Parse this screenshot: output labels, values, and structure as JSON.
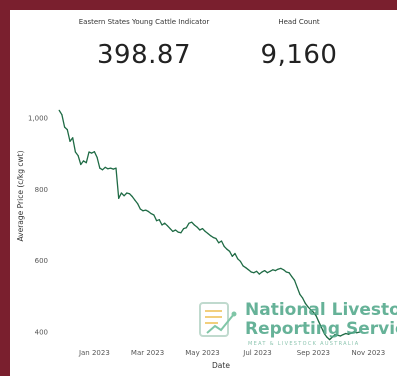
{
  "kpis": [
    {
      "label": "Eastern States Young Cattle Indicator",
      "value": "398.87"
    },
    {
      "label": "Head Count",
      "value": "9,160"
    }
  ],
  "watermark": {
    "line1": "National Livestock",
    "line2": "Reporting Service",
    "tagline": "MEAT & LIVESTOCK AUSTRALIA"
  },
  "colors": {
    "line": "#1f6b45",
    "frame": "#7a1f2e",
    "watermark": "#52a88a"
  },
  "chart_data": {
    "type": "line",
    "xlabel": "Date",
    "ylabel": "Average Price (c/kg cwt)",
    "x_tick_labels": [
      "Jan 2023",
      "Mar 2023",
      "May 2023",
      "Jul 2023",
      "Sep 2023",
      "Nov 2023"
    ],
    "x_ticks": [
      "2023-01-01",
      "2023-03-01",
      "2023-05-01",
      "2023-07-01",
      "2023-09-01",
      "2023-11-01"
    ],
    "y_ticks": [
      400,
      600,
      800,
      1000
    ],
    "y_tick_labels": [
      "400",
      "600",
      "800",
      "1,000"
    ],
    "xlim": [
      "2022-11-15",
      "2023-11-25"
    ],
    "ylim": [
      360,
      1040
    ],
    "grid": false,
    "series": [
      {
        "values": [
          [
            "2022-11-23",
            1022
          ],
          [
            "2022-11-26",
            1010
          ],
          [
            "2022-11-29",
            975
          ],
          [
            "2022-12-02",
            968
          ],
          [
            "2022-12-05",
            935
          ],
          [
            "2022-12-08",
            945
          ],
          [
            "2022-12-11",
            905
          ],
          [
            "2022-12-14",
            895
          ],
          [
            "2022-12-17",
            870
          ],
          [
            "2022-12-20",
            880
          ],
          [
            "2022-12-23",
            875
          ],
          [
            "2022-12-26",
            905
          ],
          [
            "2022-12-29",
            902
          ],
          [
            "2023-01-01",
            906
          ],
          [
            "2023-01-04",
            890
          ],
          [
            "2023-01-07",
            860
          ],
          [
            "2023-01-10",
            855
          ],
          [
            "2023-01-13",
            862
          ],
          [
            "2023-01-16",
            858
          ],
          [
            "2023-01-19",
            860
          ],
          [
            "2023-01-22",
            857
          ],
          [
            "2023-01-25",
            860
          ],
          [
            "2023-01-28",
            775
          ],
          [
            "2023-01-31",
            790
          ],
          [
            "2023-02-03",
            782
          ],
          [
            "2023-02-06",
            790
          ],
          [
            "2023-02-09",
            788
          ],
          [
            "2023-02-12",
            780
          ],
          [
            "2023-02-15",
            770
          ],
          [
            "2023-02-18",
            760
          ],
          [
            "2023-02-21",
            745
          ],
          [
            "2023-02-24",
            740
          ],
          [
            "2023-02-27",
            742
          ],
          [
            "2023-03-02",
            738
          ],
          [
            "2023-03-05",
            732
          ],
          [
            "2023-03-08",
            728
          ],
          [
            "2023-03-11",
            712
          ],
          [
            "2023-03-14",
            715
          ],
          [
            "2023-03-17",
            700
          ],
          [
            "2023-03-20",
            705
          ],
          [
            "2023-03-23",
            698
          ],
          [
            "2023-03-26",
            690
          ],
          [
            "2023-03-29",
            682
          ],
          [
            "2023-04-01",
            686
          ],
          [
            "2023-04-04",
            680
          ],
          [
            "2023-04-07",
            678
          ],
          [
            "2023-04-10",
            690
          ],
          [
            "2023-04-13",
            692
          ],
          [
            "2023-04-16",
            705
          ],
          [
            "2023-04-19",
            708
          ],
          [
            "2023-04-22",
            700
          ],
          [
            "2023-04-25",
            694
          ],
          [
            "2023-04-28",
            686
          ],
          [
            "2023-05-01",
            690
          ],
          [
            "2023-05-04",
            682
          ],
          [
            "2023-05-07",
            676
          ],
          [
            "2023-05-10",
            670
          ],
          [
            "2023-05-13",
            665
          ],
          [
            "2023-05-16",
            662
          ],
          [
            "2023-05-19",
            650
          ],
          [
            "2023-05-22",
            655
          ],
          [
            "2023-05-25",
            640
          ],
          [
            "2023-05-28",
            632
          ],
          [
            "2023-05-31",
            626
          ],
          [
            "2023-06-03",
            612
          ],
          [
            "2023-06-06",
            620
          ],
          [
            "2023-06-09",
            605
          ],
          [
            "2023-06-12",
            598
          ],
          [
            "2023-06-15",
            585
          ],
          [
            "2023-06-18",
            580
          ],
          [
            "2023-06-21",
            574
          ],
          [
            "2023-06-24",
            568
          ],
          [
            "2023-06-27",
            566
          ],
          [
            "2023-06-30",
            570
          ],
          [
            "2023-07-03",
            562
          ],
          [
            "2023-07-06",
            568
          ],
          [
            "2023-07-09",
            572
          ],
          [
            "2023-07-12",
            566
          ],
          [
            "2023-07-15",
            570
          ],
          [
            "2023-07-18",
            574
          ],
          [
            "2023-07-21",
            572
          ],
          [
            "2023-07-24",
            576
          ],
          [
            "2023-07-27",
            578
          ],
          [
            "2023-07-30",
            574
          ],
          [
            "2023-08-02",
            568
          ],
          [
            "2023-08-05",
            566
          ],
          [
            "2023-08-08",
            555
          ],
          [
            "2023-08-11",
            545
          ],
          [
            "2023-08-14",
            525
          ],
          [
            "2023-08-17",
            505
          ],
          [
            "2023-08-20",
            495
          ],
          [
            "2023-08-23",
            480
          ],
          [
            "2023-08-26",
            470
          ],
          [
            "2023-08-29",
            462
          ],
          [
            "2023-09-01",
            455
          ],
          [
            "2023-09-04",
            445
          ],
          [
            "2023-09-07",
            428
          ],
          [
            "2023-09-10",
            412
          ],
          [
            "2023-09-13",
            395
          ],
          [
            "2023-09-16",
            385
          ],
          [
            "2023-09-19",
            378
          ],
          [
            "2023-09-22",
            385
          ],
          [
            "2023-09-25",
            392
          ],
          [
            "2023-09-28",
            390
          ],
          [
            "2023-10-01",
            388
          ],
          [
            "2023-10-04",
            392
          ],
          [
            "2023-10-07",
            395
          ],
          [
            "2023-10-10",
            393
          ],
          [
            "2023-10-13",
            396
          ],
          [
            "2023-10-16",
            400
          ],
          [
            "2023-10-19",
            397
          ],
          [
            "2023-10-22",
            399
          ]
        ]
      }
    ]
  }
}
